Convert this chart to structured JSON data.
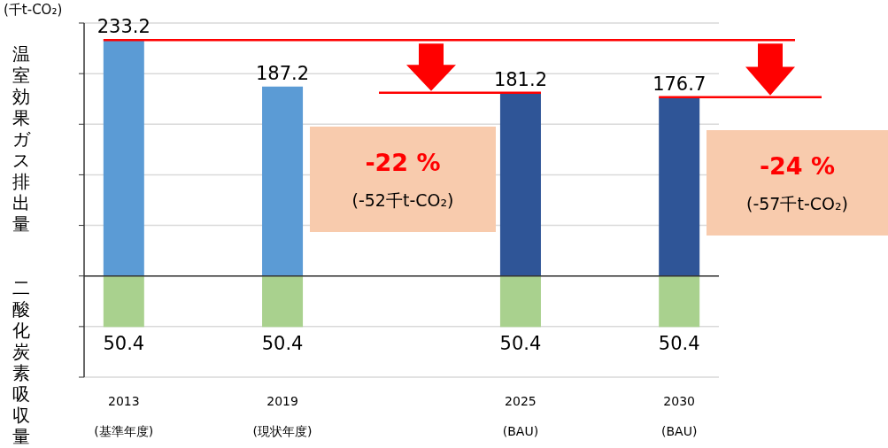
{
  "chart_data": {
    "type": "bar",
    "stacked": true,
    "ylabel": "温室効果ガス排出量",
    "categories": [
      "2013\n(基準年度)",
      "2019\n(現状年度)",
      "2025\n(BAU)",
      "2030\n(BAU)"
    ],
    "series": [
      {
        "values": [
          233.2,
          187.2,
          181.2,
          176.7
        ],
        "colors": [
          "#5b9bd5",
          "#5b9bd5",
          "#2f5597",
          "#2f5597"
        ],
        "value_labels": [
          "233.2",
          "187.2",
          "181.2",
          "176.7"
        ]
      },
      {
        "values": [
          -50.4,
          -50.4,
          -50.4,
          -50.4
        ],
        "color": "#a9d18e"
      }
    ],
    "ylim": [
      -100,
      250
    ],
    "yticks": [
      {
        "value": -100,
        "label": null
      },
      {
        "value": -50,
        "label": null
      },
      {
        "value": 0,
        "label": null
      },
      {
        "value": 50,
        "label": null
      },
      {
        "value": 100,
        "label": null
      },
      {
        "value": 150,
        "label": null
      },
      {
        "value": 200,
        "label": null
      },
      {
        "value": 250,
        "label": null
      }
    ],
    "grid": "y",
    "tick_labels": "x",
    "ref_lines": [
      {
        "axis": "y",
        "value": 233.2,
        "label": null,
        "color": "#ff0000"
      },
      {
        "axis": "y",
        "value": 181.2,
        "label": null,
        "color": "#ff0000"
      },
      {
        "axis": "y",
        "value": 176.7,
        "label": null,
        "color": "#ff0000"
      }
    ],
    "annotations": [
      "(千t-CO₂)",
      "二酸化炭素吸収量",
      "-22 %",
      "(-52千t-CO₂)",
      "-24 %",
      "(-57千t-CO₂)",
      {
        "text": "50.4",
        "x": "2013\n(基準年度)",
        "y": -50.4
      },
      {
        "text": "50.4",
        "x": "2019\n(現状年度)",
        "y": -50.4
      },
      {
        "text": "50.4",
        "x": "2025\n(BAU)",
        "y": -50.4
      },
      {
        "text": "50.4",
        "x": "2030\n(BAU)",
        "y": -50.4
      }
    ]
  }
}
